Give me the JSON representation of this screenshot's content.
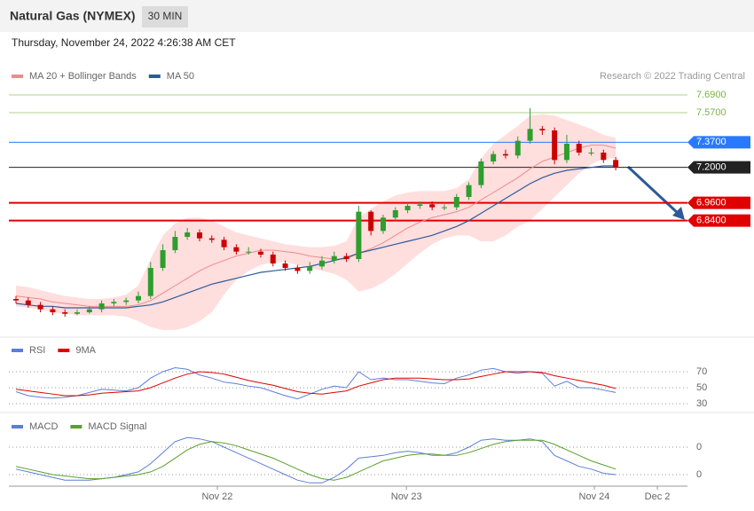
{
  "header": {
    "title": "Natural Gas (NYMEX)",
    "timeframe": "30 MIN",
    "date": "Thursday, November 24, 2022 4:26:38 AM CET",
    "copyright": "Research © 2022 Trading Central"
  },
  "chart_data": [
    {
      "type": "candlestick",
      "up_color": "#2e9e2e",
      "down_color": "#cc0000",
      "xlim": [
        -0.58,
        54.86
      ],
      "ylim": [
        6.064,
        7.762
      ],
      "open": [
        6.31,
        6.3,
        6.27,
        6.24,
        6.22,
        6.21,
        6.22,
        6.24,
        6.28,
        6.29,
        6.3,
        6.33,
        6.52,
        6.64,
        6.73,
        6.76,
        6.72,
        6.71,
        6.66,
        6.63,
        6.63,
        6.61,
        6.55,
        6.52,
        6.5,
        6.53,
        6.57,
        6.6,
        6.58,
        6.9,
        6.77,
        6.86,
        6.91,
        6.94,
        6.95,
        6.93,
        6.93,
        7.0,
        7.08,
        7.24,
        7.29,
        7.28,
        7.38,
        7.46,
        7.45,
        7.25,
        7.36,
        7.3,
        7.3,
        7.25
      ],
      "high": [
        6.33,
        6.32,
        6.29,
        6.26,
        6.24,
        6.24,
        6.26,
        6.3,
        6.31,
        6.32,
        6.36,
        6.56,
        6.68,
        6.77,
        6.79,
        6.78,
        6.74,
        6.73,
        6.68,
        6.66,
        6.65,
        6.63,
        6.57,
        6.54,
        6.56,
        6.6,
        6.63,
        6.62,
        6.94,
        6.91,
        6.88,
        6.93,
        6.96,
        6.97,
        6.97,
        6.95,
        7.02,
        7.1,
        7.26,
        7.31,
        7.32,
        7.41,
        7.6,
        7.48,
        7.47,
        7.42,
        7.38,
        7.33,
        7.32,
        7.27
      ],
      "low": [
        6.28,
        6.25,
        6.22,
        6.2,
        6.19,
        6.2,
        6.21,
        6.22,
        6.26,
        6.27,
        6.28,
        6.31,
        6.5,
        6.62,
        6.71,
        6.7,
        6.69,
        6.64,
        6.61,
        6.61,
        6.59,
        6.53,
        6.5,
        6.48,
        6.48,
        6.51,
        6.55,
        6.56,
        6.56,
        6.74,
        6.75,
        6.84,
        6.89,
        6.92,
        6.91,
        6.91,
        6.91,
        6.98,
        7.06,
        7.22,
        7.26,
        7.26,
        7.36,
        7.42,
        7.22,
        7.23,
        7.28,
        7.28,
        7.23,
        7.18
      ],
      "close": [
        6.3,
        6.27,
        6.24,
        6.22,
        6.21,
        6.22,
        6.24,
        6.28,
        6.29,
        6.3,
        6.33,
        6.52,
        6.64,
        6.73,
        6.76,
        6.72,
        6.71,
        6.66,
        6.63,
        6.63,
        6.61,
        6.55,
        6.52,
        6.5,
        6.53,
        6.57,
        6.6,
        6.58,
        6.9,
        6.77,
        6.86,
        6.91,
        6.94,
        6.95,
        6.93,
        6.93,
        7.0,
        7.08,
        7.24,
        7.29,
        7.28,
        7.38,
        7.46,
        7.45,
        7.25,
        7.36,
        7.3,
        7.3,
        7.25,
        7.2
      ],
      "series": [
        {
          "name": "MA 20 + Bollinger Bands",
          "color": "#f08a8a",
          "values": [
            6.33,
            6.32,
            6.31,
            6.29,
            6.28,
            6.27,
            6.26,
            6.26,
            6.26,
            6.26,
            6.27,
            6.3,
            6.35,
            6.4,
            6.45,
            6.5,
            6.54,
            6.57,
            6.6,
            6.62,
            6.64,
            6.64,
            6.63,
            6.62,
            6.6,
            6.59,
            6.58,
            6.58,
            6.62,
            6.65,
            6.69,
            6.74,
            6.79,
            6.83,
            6.86,
            6.88,
            6.9,
            6.93,
            6.98,
            7.03,
            7.08,
            7.13,
            7.19,
            7.24,
            7.27,
            7.3,
            7.33,
            7.35,
            7.35,
            7.33
          ]
        },
        {
          "name": "MA 50",
          "color": "#2d5a98",
          "values": [
            6.28,
            6.27,
            6.26,
            6.26,
            6.25,
            6.25,
            6.25,
            6.25,
            6.25,
            6.25,
            6.26,
            6.27,
            6.29,
            6.32,
            6.35,
            6.38,
            6.41,
            6.43,
            6.45,
            6.47,
            6.49,
            6.5,
            6.51,
            6.52,
            6.53,
            6.55,
            6.57,
            6.59,
            6.62,
            6.64,
            6.66,
            6.68,
            6.7,
            6.72,
            6.74,
            6.77,
            6.8,
            6.84,
            6.89,
            6.94,
            6.99,
            7.04,
            7.09,
            7.13,
            7.16,
            7.18,
            7.19,
            7.2,
            7.21,
            7.21
          ]
        }
      ],
      "band_color": "#ffd6d6",
      "bb_upper": [
        6.4,
        6.39,
        6.37,
        6.35,
        6.33,
        6.32,
        6.31,
        6.31,
        6.32,
        6.34,
        6.4,
        6.58,
        6.74,
        6.82,
        6.86,
        6.86,
        6.84,
        6.8,
        6.76,
        6.74,
        6.72,
        6.7,
        6.68,
        6.67,
        6.66,
        6.66,
        6.67,
        6.7,
        6.86,
        6.92,
        6.97,
        7.01,
        7.03,
        7.04,
        7.04,
        7.04,
        7.06,
        7.12,
        7.26,
        7.36,
        7.42,
        7.48,
        7.55,
        7.56,
        7.55,
        7.52,
        7.49,
        7.46,
        7.42,
        7.4
      ],
      "bb_lower": [
        6.26,
        6.25,
        6.24,
        6.22,
        6.21,
        6.2,
        6.2,
        6.2,
        6.2,
        6.19,
        6.16,
        6.12,
        6.1,
        6.1,
        6.12,
        6.16,
        6.22,
        6.34,
        6.44,
        6.5,
        6.54,
        6.56,
        6.56,
        6.54,
        6.52,
        6.5,
        6.48,
        6.44,
        6.36,
        6.38,
        6.42,
        6.48,
        6.55,
        6.62,
        6.68,
        6.72,
        6.74,
        6.74,
        6.7,
        6.7,
        6.74,
        6.8,
        6.84,
        6.92,
        7.0,
        7.08,
        7.16,
        7.22,
        7.26,
        7.26
      ],
      "levels": [
        {
          "value": 7.69,
          "label": "7.6900",
          "color": "#7cb342",
          "boxed": false
        },
        {
          "value": 7.57,
          "label": "7.5700",
          "color": "#7cb342",
          "boxed": false
        },
        {
          "value": 7.37,
          "label": "7.3700",
          "color": "#2979ff",
          "boxed": true
        },
        {
          "value": 7.2,
          "label": "7.2000",
          "color": "#222222",
          "boxed": true
        },
        {
          "value": 6.96,
          "label": "6.9600",
          "color": "#e00000",
          "boxed": true
        },
        {
          "value": 6.84,
          "label": "6.8400",
          "color": "#e00000",
          "boxed": true
        }
      ]
    },
    {
      "type": "line",
      "xlim": [
        -0.58,
        54.86
      ],
      "ylim": [
        21.1,
        111.1
      ],
      "yticks": [
        30,
        50,
        70
      ],
      "series": [
        {
          "name": "RSI",
          "color": "#5b7fd6",
          "values": [
            45,
            40,
            38,
            37,
            38,
            40,
            44,
            48,
            47,
            46,
            50,
            62,
            70,
            75,
            73,
            66,
            62,
            57,
            55,
            52,
            50,
            45,
            40,
            36,
            42,
            48,
            52,
            50,
            70,
            60,
            62,
            60,
            60,
            58,
            56,
            55,
            62,
            66,
            72,
            74,
            70,
            68,
            70,
            68,
            52,
            58,
            50,
            50,
            47,
            44
          ]
        },
        {
          "name": "9MA",
          "color": "#e00000",
          "values": [
            48,
            46,
            44,
            42,
            40,
            40,
            41,
            43,
            44,
            45,
            46,
            50,
            56,
            62,
            67,
            70,
            69,
            67,
            63,
            59,
            56,
            53,
            49,
            45,
            43,
            42,
            44,
            46,
            52,
            56,
            60,
            62,
            62,
            62,
            61,
            60,
            60,
            61,
            64,
            67,
            70,
            70,
            70,
            69,
            65,
            62,
            59,
            56,
            53,
            49
          ]
        }
      ]
    },
    {
      "type": "line",
      "xlim": [
        -0.58,
        54.86
      ],
      "ylim": [
        -0.0919,
        0.1661
      ],
      "yticks": [
        {
          "value": 0.05,
          "label": "0"
        },
        {
          "value": -0.05,
          "label": "0"
        }
      ],
      "xticks": [
        {
          "value": 16.45,
          "label": "Nov 22"
        },
        {
          "value": 31.9,
          "label": "Nov 23"
        },
        {
          "value": 47.25,
          "label": "Nov 24"
        },
        {
          "value": 52.4,
          "label": "Dec 2"
        }
      ],
      "series": [
        {
          "name": "MACD",
          "color": "#5b7fd6",
          "values": [
            -0.03,
            -0.04,
            -0.05,
            -0.06,
            -0.07,
            -0.07,
            -0.07,
            -0.065,
            -0.06,
            -0.05,
            -0.04,
            -0.01,
            0.03,
            0.07,
            0.085,
            0.08,
            0.07,
            0.05,
            0.03,
            0.01,
            -0.01,
            -0.03,
            -0.05,
            -0.07,
            -0.08,
            -0.08,
            -0.06,
            -0.03,
            0.01,
            0.015,
            0.02,
            0.03,
            0.035,
            0.03,
            0.02,
            0.02,
            0.03,
            0.05,
            0.075,
            0.08,
            0.075,
            0.075,
            0.08,
            0.07,
            0.02,
            0.0,
            -0.02,
            -0.03,
            -0.045,
            -0.05
          ]
        },
        {
          "name": "MACD Signal",
          "color": "#5aa02c",
          "values": [
            -0.02,
            -0.03,
            -0.04,
            -0.05,
            -0.055,
            -0.06,
            -0.065,
            -0.065,
            -0.06,
            -0.055,
            -0.05,
            -0.04,
            -0.02,
            0.01,
            0.04,
            0.06,
            0.07,
            0.065,
            0.055,
            0.04,
            0.025,
            0.01,
            -0.01,
            -0.03,
            -0.05,
            -0.065,
            -0.07,
            -0.06,
            -0.04,
            -0.02,
            0.0,
            0.01,
            0.02,
            0.025,
            0.025,
            0.02,
            0.02,
            0.03,
            0.045,
            0.06,
            0.07,
            0.075,
            0.075,
            0.075,
            0.06,
            0.04,
            0.02,
            0.0,
            -0.015,
            -0.03
          ]
        }
      ]
    }
  ]
}
